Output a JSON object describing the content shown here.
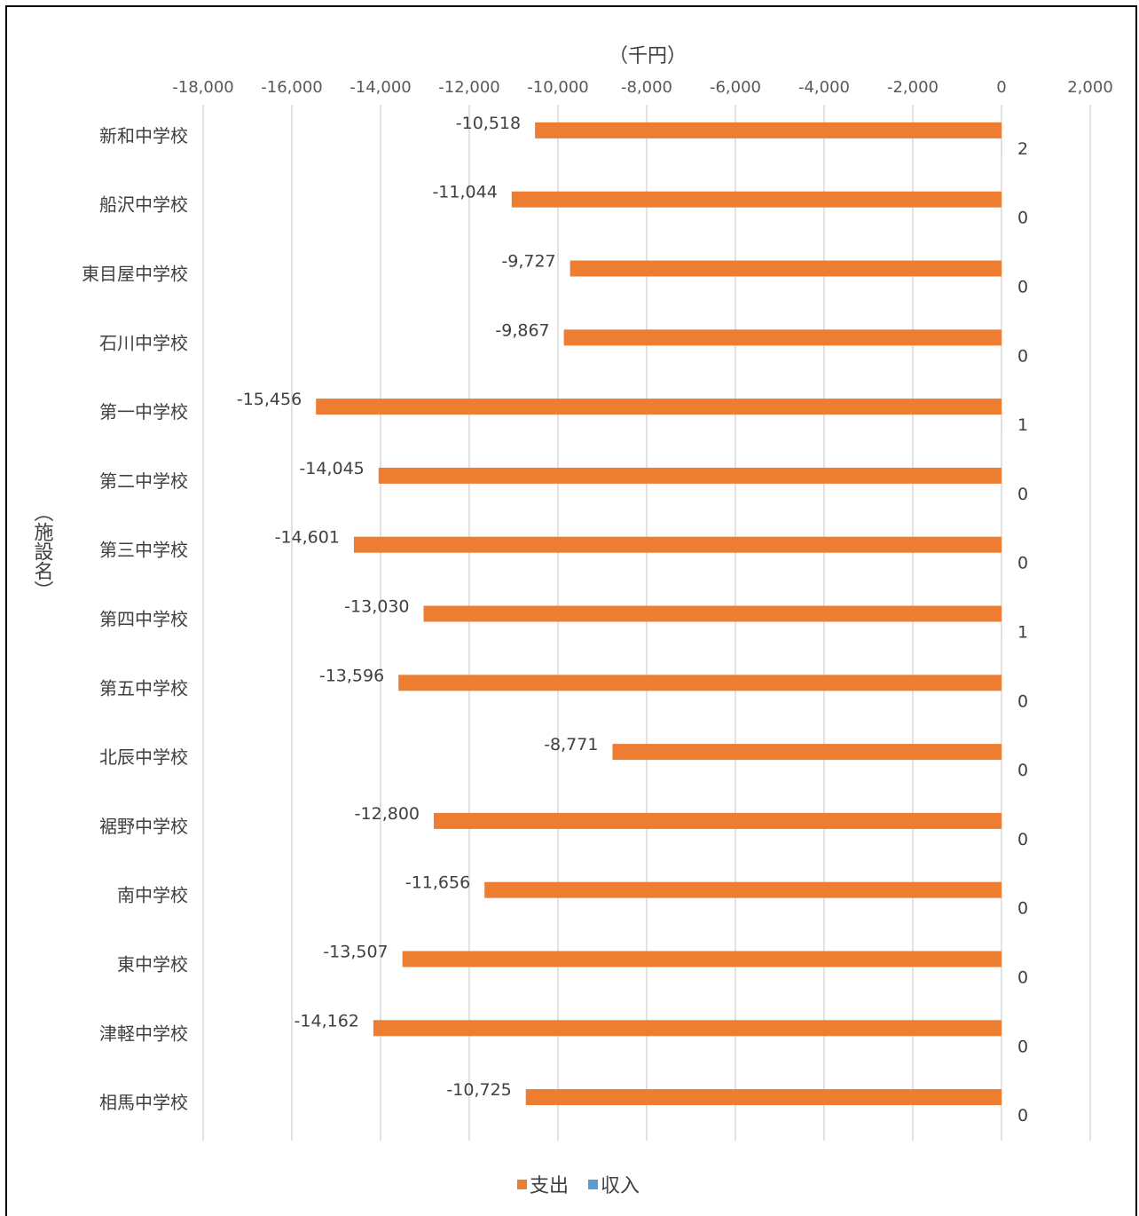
{
  "chart_data": {
    "type": "bar",
    "orientation": "horizontal",
    "categories": [
      "新和中学校",
      "船沢中学校",
      "東目屋中学校",
      "石川中学校",
      "第一中学校",
      "第二中学校",
      "第三中学校",
      "第四中学校",
      "第五中学校",
      "北辰中学校",
      "裾野中学校",
      "南中学校",
      "東中学校",
      "津軽中学校",
      "相馬中学校"
    ],
    "series": [
      {
        "name": "支出",
        "color": "#ED7D31",
        "values": [
          -10518,
          -11044,
          -9727,
          -9867,
          -15456,
          -14045,
          -14601,
          -13030,
          -13596,
          -8771,
          -12800,
          -11656,
          -13507,
          -14162,
          -10725
        ]
      },
      {
        "name": "収入",
        "color": "#5B9BD5",
        "values": [
          2,
          0,
          0,
          0,
          1,
          0,
          0,
          1,
          0,
          0,
          0,
          0,
          0,
          0,
          0
        ]
      }
    ],
    "data_labels": {
      "支出": [
        "-10,518",
        "-11,044",
        "-9,727",
        "-9,867",
        "-15,456",
        "-14,045",
        "-14,601",
        "-13,030",
        "-13,596",
        "-8,771",
        "-12,800",
        "-11,656",
        "-13,507",
        "-14,162",
        "-10,725"
      ],
      "収入": [
        "2",
        "0",
        "0",
        "0",
        "1",
        "0",
        "0",
        "1",
        "0",
        "0",
        "0",
        "0",
        "0",
        "0",
        "0"
      ]
    },
    "xlabel": "（千円）",
    "ylabel": "（施設名）",
    "xlim": [
      -18000,
      2000
    ],
    "xticks": [
      -18000,
      -16000,
      -14000,
      -12000,
      -10000,
      -8000,
      -6000,
      -4000,
      -2000,
      0,
      2000
    ],
    "xtick_labels": [
      "-18,000",
      "-16,000",
      "-14,000",
      "-12,000",
      "-10,000",
      "-8,000",
      "-6,000",
      "-4,000",
      "-2,000",
      "0",
      "2,000"
    ],
    "x_axis_position": "top",
    "grid": true,
    "legend_position": "bottom"
  }
}
